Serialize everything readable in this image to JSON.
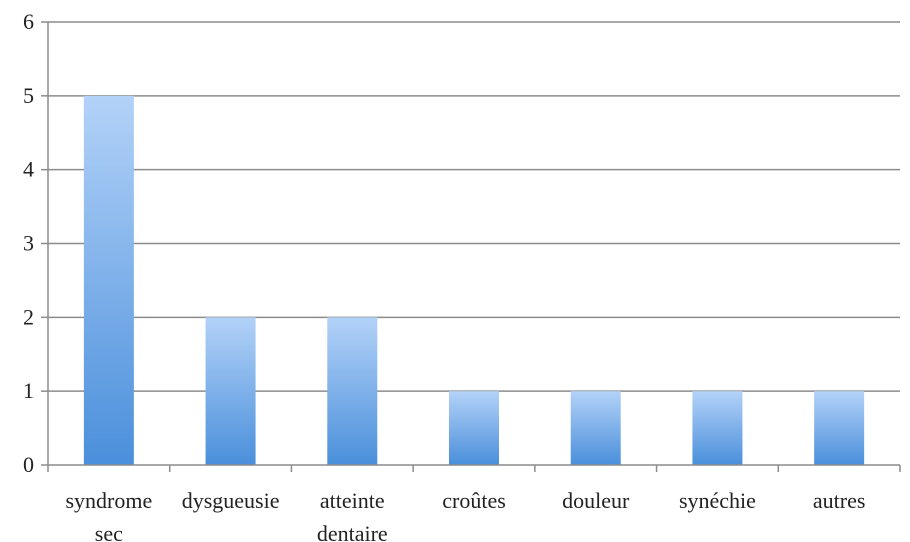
{
  "chart_data": {
    "type": "bar",
    "categories": [
      [
        "syndrome",
        "sec"
      ],
      [
        "dysgueusie"
      ],
      [
        "atteinte",
        "dentaire"
      ],
      [
        "croûtes"
      ],
      [
        "douleur"
      ],
      [
        "synéchie"
      ],
      [
        "autres"
      ]
    ],
    "values": [
      5,
      2,
      2,
      1,
      1,
      1,
      1
    ],
    "yticks": [
      "0",
      "1",
      "2",
      "3",
      "4",
      "5",
      "6"
    ],
    "ylim": [
      0,
      6
    ],
    "grid": true,
    "legend": "none",
    "colors": {
      "bar_top": "#b3d2f8",
      "bar_bottom": "#4a8fdb",
      "grid": "#8c8c8c",
      "axis": "#8c8c8c"
    }
  }
}
